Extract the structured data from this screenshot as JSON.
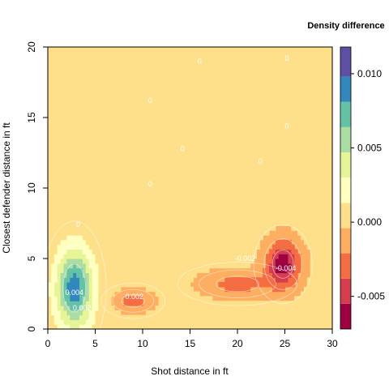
{
  "chart_data": {
    "type": "heatmap",
    "title": "",
    "xlabel": "Shot distance in ft",
    "ylabel": "Closest defender distance in ft",
    "xlim": [
      0,
      30
    ],
    "ylim": [
      0,
      20
    ],
    "x_ticks": [
      "0",
      "5",
      "10",
      "15",
      "20",
      "25",
      "30"
    ],
    "y_ticks": [
      "0",
      "5",
      "10",
      "15",
      "20"
    ],
    "background_level": 0.0,
    "background_color": "#FDAE61",
    "legend": {
      "title": "Density difference",
      "tick_labels": [
        "0.010",
        "0.005",
        "0.000",
        "-0.005"
      ],
      "tick_values": [
        0.01,
        0.005,
        0.0,
        -0.005
      ],
      "range": [
        -0.0072,
        0.0118
      ],
      "bins": [
        {
          "from": -0.0072,
          "to": -0.0055,
          "color": "#9E0142"
        },
        {
          "from": -0.0055,
          "to": -0.0038,
          "color": "#D53E4F"
        },
        {
          "from": -0.0038,
          "to": -0.0021,
          "color": "#F46D43"
        },
        {
          "from": -0.0021,
          "to": -0.0004,
          "color": "#FDAE61"
        },
        {
          "from": -0.0004,
          "to": 0.0013,
          "color": "#FEE08B"
        },
        {
          "from": 0.0013,
          "to": 0.003,
          "color": "#FFFFBF"
        },
        {
          "from": 0.003,
          "to": 0.0047,
          "color": "#E6F598"
        },
        {
          "from": 0.0047,
          "to": 0.0064,
          "color": "#ABDDA4"
        },
        {
          "from": 0.0064,
          "to": 0.0081,
          "color": "#66C2A5"
        },
        {
          "from": 0.0081,
          "to": 0.0098,
          "color": "#3288BD"
        },
        {
          "from": 0.0098,
          "to": 0.0118,
          "color": "#5E4FA2"
        }
      ]
    },
    "blobs": [
      {
        "name": "positive-peak",
        "x": 2.8,
        "y": 2.9,
        "value": 0.0092,
        "rx": 2.4,
        "ry": 3.4
      },
      {
        "name": "negative-mid",
        "x": 9.0,
        "y": 2.0,
        "value": -0.0028,
        "rx": 2.4,
        "ry": 0.9
      },
      {
        "name": "negative-peak",
        "x": 24.8,
        "y": 4.6,
        "value": -0.0066,
        "rx": 2.2,
        "ry": 2.0
      },
      {
        "name": "negative-band",
        "x": 20.0,
        "y": 3.2,
        "value": -0.0028,
        "rx": 4.5,
        "ry": 1.1
      }
    ],
    "contour_labels": [
      {
        "text": "0",
        "x": 16,
        "y": 19
      },
      {
        "text": "0",
        "x": 25.2,
        "y": 19.2
      },
      {
        "text": "0",
        "x": 10.8,
        "y": 16.2
      },
      {
        "text": "0",
        "x": 25.2,
        "y": 14.4
      },
      {
        "text": "0",
        "x": 14.2,
        "y": 12.8
      },
      {
        "text": "0",
        "x": 22.4,
        "y": 11.9
      },
      {
        "text": "0",
        "x": 10.8,
        "y": 10.3
      },
      {
        "text": "0",
        "x": 3.2,
        "y": 7.4
      },
      {
        "text": "-0.002",
        "x": 20.8,
        "y": 5.0
      },
      {
        "text": "-0.004",
        "x": 25.1,
        "y": 4.3
      },
      {
        "text": "-0.002",
        "x": 9.0,
        "y": 2.3
      },
      {
        "text": "0.004",
        "x": 2.8,
        "y": 2.6
      },
      {
        "text": "0.002",
        "x": 3.6,
        "y": 1.5
      }
    ]
  }
}
